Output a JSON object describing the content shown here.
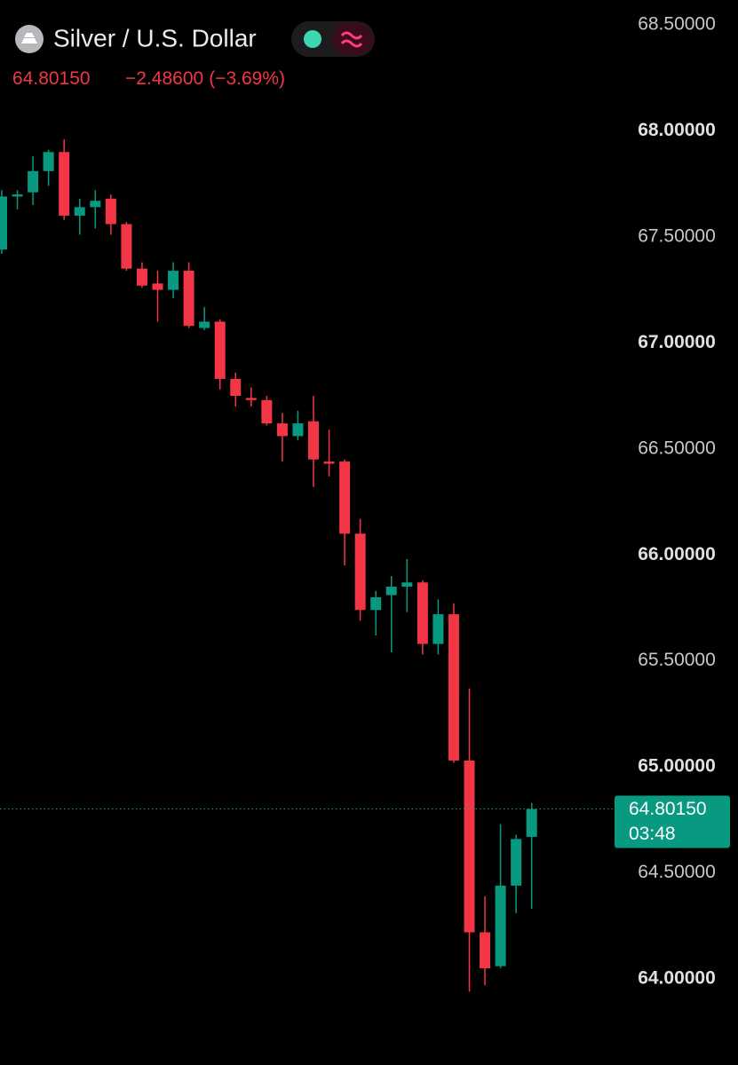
{
  "header": {
    "symbol": "Silver / U.S. Dollar",
    "price": "64.80150",
    "change": "−2.48600",
    "change_percent": "(−3.69%)"
  },
  "chart_data": {
    "type": "candlestick",
    "ylim": [
      63.594,
      68.617
    ],
    "yticks": [
      {
        "value": 68.5,
        "label": "68.50000"
      },
      {
        "value": 68,
        "label": "68.00000"
      },
      {
        "value": 67.5,
        "label": "67.50000"
      },
      {
        "value": 67,
        "label": "67.00000"
      },
      {
        "value": 66.5,
        "label": "66.50000"
      },
      {
        "value": 66,
        "label": "66.00000"
      },
      {
        "value": 65.5,
        "label": "65.50000"
      },
      {
        "value": 65,
        "label": "65.00000"
      },
      {
        "value": 64.5,
        "label": "64.50000"
      },
      {
        "value": 64,
        "label": "64.00000"
      }
    ],
    "up_color": "#089981",
    "down_color": "#f23645",
    "last_price": {
      "value": 64.8015,
      "label": "64.80150"
    },
    "countdown": "03:48",
    "open": [
      67.44,
      67.69,
      67.71,
      67.81,
      67.9,
      67.6,
      67.64,
      67.68,
      67.56,
      67.35,
      67.28,
      67.25,
      67.34,
      67.07,
      67.1,
      66.83,
      66.74,
      66.73,
      66.62,
      66.56,
      66.63,
      66.44,
      66.44,
      66.1,
      65.74,
      65.81,
      65.85,
      65.87,
      65.58,
      65.72,
      65.03,
      64.22,
      64.06,
      64.44,
      64.67
    ],
    "high": [
      67.72,
      67.72,
      67.88,
      67.91,
      67.96,
      67.68,
      67.72,
      67.7,
      67.57,
      67.38,
      67.34,
      67.38,
      67.38,
      67.17,
      67.11,
      66.86,
      66.79,
      66.75,
      66.67,
      66.68,
      66.75,
      66.59,
      66.45,
      66.17,
      65.83,
      65.9,
      65.98,
      65.88,
      65.79,
      65.77,
      65.37,
      64.39,
      64.73,
      64.68,
      64.83
    ],
    "low": [
      67.42,
      67.63,
      67.65,
      67.74,
      67.58,
      67.51,
      67.54,
      67.51,
      67.34,
      67.26,
      67.1,
      67.21,
      67.07,
      67.06,
      66.78,
      66.7,
      66.7,
      66.61,
      66.44,
      66.54,
      66.32,
      66.37,
      65.95,
      65.69,
      65.62,
      65.54,
      65.73,
      65.53,
      65.53,
      65.02,
      63.94,
      63.97,
      64.05,
      64.31,
      64.33
    ],
    "close": [
      67.69,
      67.7,
      67.81,
      67.9,
      67.6,
      67.64,
      67.67,
      67.56,
      67.35,
      67.27,
      67.25,
      67.34,
      67.08,
      67.1,
      66.83,
      66.75,
      66.73,
      66.62,
      66.56,
      66.62,
      66.45,
      66.43,
      66.1,
      65.74,
      65.8,
      65.85,
      65.87,
      65.58,
      65.72,
      65.03,
      64.22,
      64.05,
      64.44,
      64.66,
      64.8015
    ]
  }
}
